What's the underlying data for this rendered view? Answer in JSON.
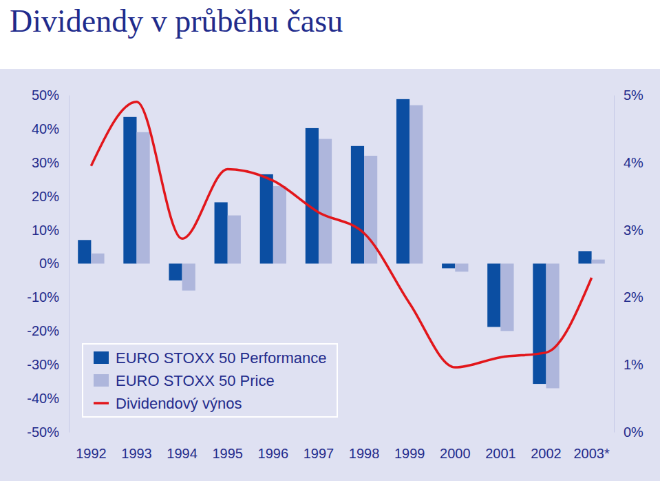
{
  "chart_data": {
    "type": "bar",
    "title": "Dividendy v průběhu času",
    "categories": [
      "1992",
      "1993",
      "1994",
      "1995",
      "1996",
      "1997",
      "1998",
      "1999",
      "2000",
      "2001",
      "2002",
      "2003*"
    ],
    "series": [
      {
        "name": "EURO STOXX 50 Performance",
        "color": "#0b4ea2",
        "type": "bar",
        "values": [
          7,
          43.5,
          -5,
          18.2,
          26.5,
          40.2,
          34.9,
          48.8,
          -1.4,
          -18.8,
          -35.7,
          3.7
        ]
      },
      {
        "name": "EURO STOXX 50 Price",
        "color": "#aeb6dc",
        "type": "bar",
        "values": [
          3,
          39,
          -8,
          14.3,
          23,
          37,
          32,
          47,
          -2.4,
          -20,
          -37,
          1.2
        ]
      },
      {
        "name": "Dividendový výnos",
        "color": "#e2161b",
        "type": "line",
        "axis": "y2",
        "values": [
          3.95,
          4.9,
          2.87,
          3.9,
          3.73,
          3.26,
          2.95,
          1.91,
          0.96,
          1.11,
          1.18,
          2.29
        ]
      }
    ],
    "ylim": [
      -50,
      50
    ],
    "yticks": [
      {
        "value": -50,
        "label": "-50%"
      },
      {
        "value": -40,
        "label": "-40%"
      },
      {
        "value": -30,
        "label": "-30%"
      },
      {
        "value": -20,
        "label": "-20%"
      },
      {
        "value": -10,
        "label": "-10%"
      },
      {
        "value": 0,
        "label": "0%"
      },
      {
        "value": 10,
        "label": "10%"
      },
      {
        "value": 20,
        "label": "20%"
      },
      {
        "value": 30,
        "label": "30%"
      },
      {
        "value": 40,
        "label": "40%"
      },
      {
        "value": 50,
        "label": "50%"
      }
    ],
    "y2lim": [
      0,
      5
    ],
    "y2ticks": [
      {
        "value": 0,
        "label": "0%"
      },
      {
        "value": 1,
        "label": "1%"
      },
      {
        "value": 2,
        "label": "2%"
      },
      {
        "value": 3,
        "label": "3%"
      },
      {
        "value": 4,
        "label": "4%"
      },
      {
        "value": 5,
        "label": "5%"
      }
    ],
    "grid": false,
    "legend": "bottom-left"
  }
}
